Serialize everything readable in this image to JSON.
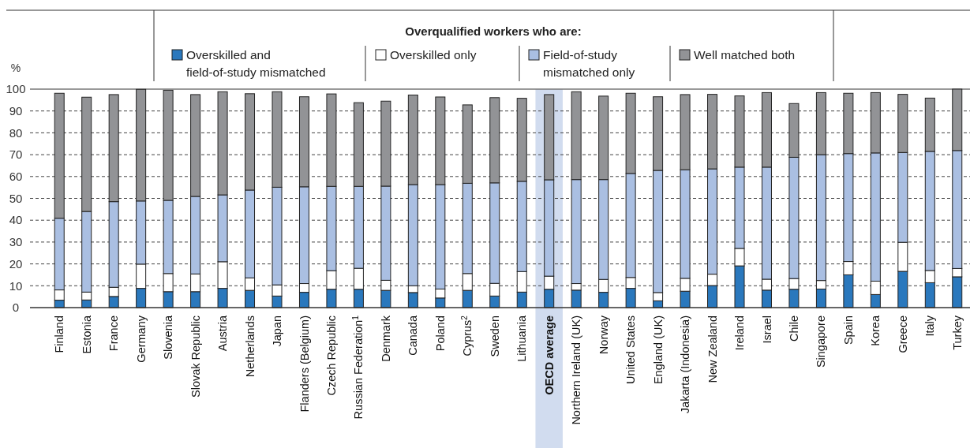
{
  "chart_data": {
    "type": "bar",
    "stacked": true,
    "legend_title": "Overqualified workers who are:",
    "ylabel": "%",
    "legend": "top",
    "grid": "y",
    "line_style": "dashed",
    "categories": [
      "Finland",
      "Estonia",
      "France",
      "Germany",
      "Slovenia",
      "Slovak Republic",
      "Austria",
      "Netherlands",
      "Japan",
      "Flanders (Belgium)",
      "Czech Republic",
      "Russian Federation$^{1}$",
      "Denmark",
      "Canada",
      "Poland",
      "Cyprus$^{2}$",
      "Sweden",
      "Lithuania",
      "OECD average",
      "Northern Ireland (UK)",
      "Norway",
      "United States",
      "England (UK)",
      "Jakarta (Indonesia)",
      "New Zealand",
      "Ireland",
      "Israel",
      "Chile",
      "Singapore",
      "Spain",
      "Korea",
      "Greece",
      "Italy",
      "Turkey"
    ],
    "ylim": [
      0,
      100
    ],
    "yticks": [
      0,
      10,
      20,
      30,
      40,
      50,
      60,
      70,
      80,
      90,
      100
    ],
    "bands": [
      {
        "axis": "x",
        "from": "OECD average",
        "to": "OECD average",
        "color": "#d1dcef"
      }
    ],
    "series": [
      {
        "name": "Overskilled and field-of-study mismatched",
        "color": "#2a78bd",
        "values": [
          3.4,
          3.5,
          5.1,
          8.8,
          7.3,
          7.3,
          8.8,
          7.9,
          5.3,
          7.0,
          8.4,
          8.4,
          7.9,
          6.9,
          4.4,
          7.9,
          5.3,
          7.1,
          8.4,
          8.0,
          7.0,
          8.8,
          3.1,
          7.5,
          10.1,
          19.1,
          8.0,
          8.4,
          8.5,
          15.0,
          6.0,
          16.6,
          11.4,
          14.1
        ]
      },
      {
        "name": "Overskilled only",
        "color": "#ffffff",
        "values": [
          4.7,
          3.6,
          4.2,
          11.1,
          8.3,
          8.1,
          12.2,
          5.7,
          5.1,
          4.0,
          8.5,
          9.6,
          4.6,
          3.1,
          4.1,
          7.7,
          5.8,
          9.4,
          6.0,
          3.0,
          5.9,
          5.0,
          3.8,
          5.9,
          5.2,
          8.0,
          5.0,
          4.9,
          3.9,
          6.1,
          6.1,
          13.3,
          5.6,
          3.8
        ]
      },
      {
        "name": "Field-of-study mismatched only",
        "color": "#aabfe2",
        "values": [
          32.8,
          36.9,
          39.2,
          28.9,
          33.5,
          35.5,
          30.6,
          40.2,
          44.7,
          44.3,
          38.6,
          37.5,
          43.1,
          46.3,
          47.8,
          41.3,
          46.0,
          41.3,
          44.1,
          47.6,
          45.7,
          47.6,
          55.9,
          49.7,
          48.2,
          37.2,
          51.3,
          55.5,
          57.6,
          49.4,
          58.7,
          41.1,
          54.5,
          54.0
        ]
      },
      {
        "name": "Well matched both",
        "color": "#929396",
        "values": [
          57.2,
          52.3,
          49.0,
          51.1,
          50.4,
          46.6,
          47.2,
          44.1,
          43.7,
          41.2,
          42.3,
          38.3,
          38.9,
          41.0,
          40.1,
          35.9,
          39.0,
          38.0,
          39.0,
          40.2,
          38.2,
          36.7,
          33.7,
          34.4,
          34.1,
          32.6,
          34.1,
          24.6,
          28.4,
          27.6,
          27.6,
          26.6,
          24.4,
          28.1
        ]
      }
    ]
  }
}
